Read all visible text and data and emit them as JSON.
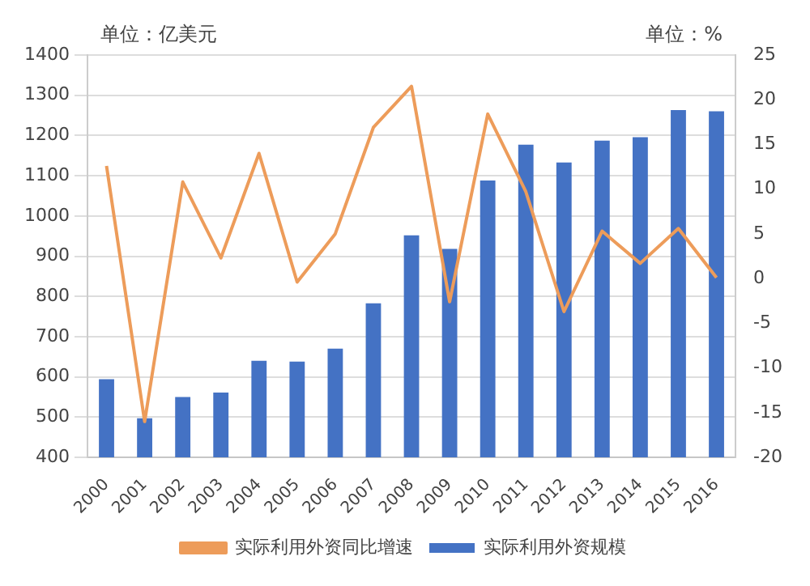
{
  "chart_data": {
    "type": "bar",
    "ylabel": "单位：亿美元",
    "y2label": "单位：%",
    "categories": [
      "2000",
      "2001",
      "2002",
      "2003",
      "2004",
      "2005",
      "2006",
      "2007",
      "2008",
      "2009",
      "2010",
      "2011",
      "2012",
      "2013",
      "2014",
      "2015",
      "2016"
    ],
    "series": [
      {
        "name": "实际利用外资规模",
        "color": "#4472c4",
        "values": [
          594,
          497,
          550,
          561,
          640,
          638,
          670,
          783,
          952,
          918,
          1088,
          1177,
          1133,
          1187,
          1196,
          1263,
          1260
        ]
      },
      {
        "name": "实际利用外资同比增速",
        "type": "line",
        "axis": "y2",
        "color": "#ed9c5a",
        "values": [
          12.6,
          -16,
          10.8,
          2.3,
          14,
          -0.4,
          5,
          16.9,
          21.5,
          -2.6,
          18.4,
          9.7,
          -3.7,
          5.3,
          1.7,
          5.6,
          0.1
        ]
      }
    ],
    "ylim": [
      400,
      1400
    ],
    "yticks": [
      400,
      500,
      600,
      700,
      800,
      900,
      1000,
      1100,
      1200,
      1300,
      1400
    ],
    "y2lim": [
      -20,
      25
    ],
    "y2ticks": [
      -20,
      -15,
      -10,
      -5,
      0,
      5,
      10,
      15,
      20,
      25
    ],
    "grid": "y",
    "legend": "bottom",
    "marker": "none"
  }
}
